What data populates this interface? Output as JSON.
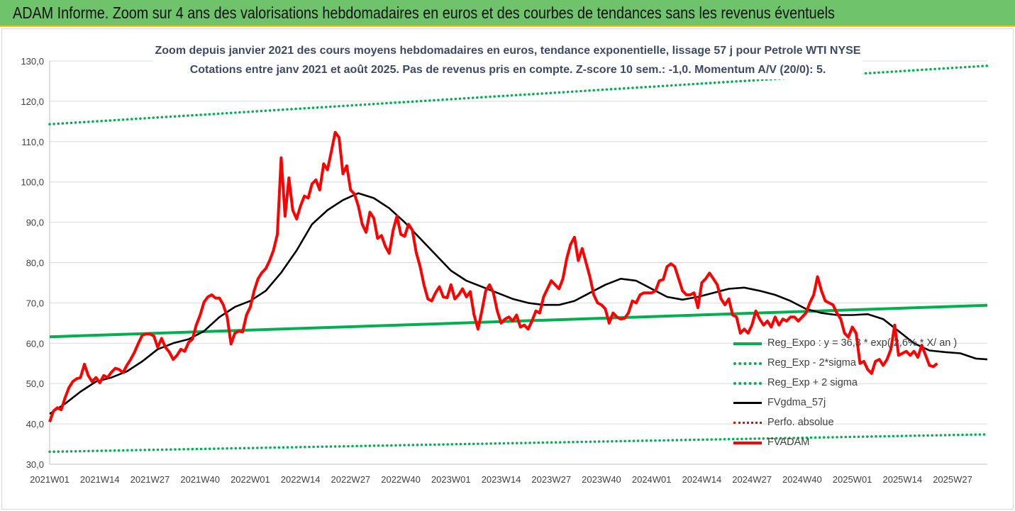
{
  "banner": {
    "title": "ADAM Informe. Zoom sur 4 ans des valorisations hebdomadaires en euros et des courbes de tendances sans les revenus éventuels"
  },
  "colors": {
    "banner_bg": "#6fc36a",
    "banner_border": "#f4c20d",
    "subtitle_text": "#3d4a66",
    "series_fvadam": "#ff0000",
    "series_fvgdma": "#000000",
    "series_regexpo": "#00b050",
    "series_perfo": "#ff0000",
    "gridline": "#d9d9d9"
  },
  "chart_data": {
    "type": "line",
    "title_line1": "Zoom depuis janvier 2021 des cours moyens hebdomadaires en euros, tendance exponentielle, lissage 57 j pour Petrole WTI NYSE",
    "title_line2": "Cotations entre janv 2021 et août 2025.  Pas de revenus pris en compte.  Z-score 10 sem.: -1,0. Momentum A/V (20/0): 5.",
    "ylim": [
      30,
      130
    ],
    "grid": "horizontal",
    "y_ticks": [
      "30,0",
      "40,0",
      "50,0",
      "60,0",
      "70,0",
      "80,0",
      "90,0",
      "100,0",
      "110,0",
      "120,0",
      "130,0"
    ],
    "x_ticks": [
      "2021W01",
      "2021W14",
      "2021W27",
      "2021W40",
      "2022W01",
      "2022W14",
      "2022W27",
      "2022W40",
      "2023W01",
      "2023W14",
      "2023W27",
      "2023W40",
      "2024W01",
      "2024W14",
      "2024W27",
      "2024W40",
      "2025W01",
      "2025W14",
      "2025W27"
    ],
    "x_range_weeks": [
      0,
      243
    ],
    "legend_position": "bottom-right",
    "series": [
      {
        "name": "Reg_Expo : y = 36,3 * exp( 2,6% *  X/ an )",
        "key": "reg",
        "style": "solid",
        "points": [
          [
            0,
            61.6
          ],
          [
            243,
            69.4
          ]
        ]
      },
      {
        "name": "Reg_Exp - 2*sigma",
        "key": "low",
        "style": "dotted",
        "points": [
          [
            0,
            33.1
          ],
          [
            243,
            37.4
          ]
        ]
      },
      {
        "name": "Reg_Exp + 2 sigma",
        "key": "high",
        "style": "dotted",
        "points": [
          [
            0,
            114.3
          ],
          [
            243,
            128.8
          ]
        ]
      },
      {
        "name": "FVgdma_57j",
        "key": "gdma",
        "style": "solid",
        "points": [
          [
            0,
            42.5
          ],
          [
            4,
            45
          ],
          [
            8,
            48
          ],
          [
            12,
            50.5
          ],
          [
            16,
            51.5
          ],
          [
            20,
            53
          ],
          [
            24,
            55.5
          ],
          [
            28,
            58.5
          ],
          [
            32,
            60
          ],
          [
            36,
            61
          ],
          [
            40,
            63
          ],
          [
            44,
            66.5
          ],
          [
            48,
            69
          ],
          [
            52,
            70.5
          ],
          [
            56,
            73
          ],
          [
            60,
            77.5
          ],
          [
            64,
            83
          ],
          [
            68,
            89.5
          ],
          [
            72,
            93
          ],
          [
            76,
            95.5
          ],
          [
            80,
            97.2
          ],
          [
            84,
            96
          ],
          [
            88,
            93.5
          ],
          [
            92,
            90
          ],
          [
            96,
            86
          ],
          [
            100,
            82
          ],
          [
            104,
            78
          ],
          [
            108,
            75.5
          ],
          [
            112,
            74
          ],
          [
            116,
            72.5
          ],
          [
            120,
            71
          ],
          [
            124,
            70
          ],
          [
            128,
            69.5
          ],
          [
            132,
            69.5
          ],
          [
            136,
            70.5
          ],
          [
            140,
            72.5
          ],
          [
            144,
            74.5
          ],
          [
            148,
            76
          ],
          [
            152,
            75.5
          ],
          [
            156,
            73.5
          ],
          [
            160,
            71.5
          ],
          [
            164,
            70.8
          ],
          [
            168,
            71.5
          ],
          [
            172,
            72.5
          ],
          [
            176,
            73.5
          ],
          [
            180,
            73.8
          ],
          [
            184,
            73
          ],
          [
            188,
            72
          ],
          [
            192,
            70.5
          ],
          [
            196,
            68.5
          ],
          [
            200,
            67.5
          ],
          [
            204,
            67
          ],
          [
            208,
            67
          ],
          [
            212,
            67.2
          ],
          [
            216,
            66
          ],
          [
            220,
            63
          ],
          [
            224,
            60
          ],
          [
            228,
            58.2
          ],
          [
            232,
            57.8
          ],
          [
            236,
            57.5
          ],
          [
            240,
            56.2
          ],
          [
            243,
            56
          ]
        ]
      },
      {
        "name": "Perfo. absolue",
        "key": "perfo",
        "style": "dotted",
        "points": []
      },
      {
        "name": "FVADAM",
        "key": "adam",
        "style": "solid",
        "points": [
          [
            0,
            40.5
          ],
          [
            1,
            43.2
          ],
          [
            2,
            44
          ],
          [
            3,
            43.5
          ],
          [
            4,
            46.5
          ],
          [
            5,
            49
          ],
          [
            6,
            50.5
          ],
          [
            7,
            51.2
          ],
          [
            8,
            51.5
          ],
          [
            9,
            54.8
          ],
          [
            10,
            52
          ],
          [
            11,
            50.5
          ],
          [
            12,
            51.5
          ],
          [
            13,
            50.2
          ],
          [
            14,
            52
          ],
          [
            15,
            51.5
          ],
          [
            16,
            52.8
          ],
          [
            17,
            53.8
          ],
          [
            18,
            53.5
          ],
          [
            19,
            52.7
          ],
          [
            20,
            54.5
          ],
          [
            21,
            56
          ],
          [
            22,
            57.8
          ],
          [
            23,
            60
          ],
          [
            24,
            62
          ],
          [
            25,
            62.3
          ],
          [
            26,
            62.3
          ],
          [
            27,
            61.8
          ],
          [
            28,
            59
          ],
          [
            29,
            61.2
          ],
          [
            30,
            59
          ],
          [
            31,
            57.8
          ],
          [
            32,
            56
          ],
          [
            33,
            57
          ],
          [
            34,
            58.5
          ],
          [
            35,
            58
          ],
          [
            36,
            60.2
          ],
          [
            37,
            61
          ],
          [
            38,
            64.5
          ],
          [
            39,
            67
          ],
          [
            40,
            70.2
          ],
          [
            41,
            71.5
          ],
          [
            42,
            72
          ],
          [
            43,
            71.2
          ],
          [
            44,
            71.2
          ],
          [
            45,
            69.5
          ],
          [
            46,
            66.5
          ],
          [
            47,
            59.8
          ],
          [
            48,
            62.5
          ],
          [
            49,
            63
          ],
          [
            50,
            62.8
          ],
          [
            51,
            67
          ],
          [
            52,
            69
          ],
          [
            53,
            73
          ],
          [
            54,
            76
          ],
          [
            55,
            77.5
          ],
          [
            56,
            78.5
          ],
          [
            57,
            80.5
          ],
          [
            58,
            83
          ],
          [
            59,
            87
          ],
          [
            60,
            106
          ],
          [
            61,
            91.5
          ],
          [
            62,
            101
          ],
          [
            63,
            93
          ],
          [
            64,
            90.8
          ],
          [
            65,
            94
          ],
          [
            66,
            96.5
          ],
          [
            67,
            96
          ],
          [
            68,
            99.5
          ],
          [
            69,
            100.5
          ],
          [
            70,
            98
          ],
          [
            71,
            104.5
          ],
          [
            72,
            103
          ],
          [
            73,
            107.5
          ],
          [
            74,
            112.3
          ],
          [
            75,
            111
          ],
          [
            76,
            102
          ],
          [
            77,
            104
          ],
          [
            78,
            98
          ],
          [
            79,
            97
          ],
          [
            80,
            94
          ],
          [
            81,
            89.5
          ],
          [
            82,
            87.5
          ],
          [
            83,
            92.5
          ],
          [
            84,
            91
          ],
          [
            85,
            86
          ],
          [
            86,
            86.7
          ],
          [
            87,
            84
          ],
          [
            88,
            82.3
          ],
          [
            89,
            88
          ],
          [
            90,
            91.5
          ],
          [
            91,
            87
          ],
          [
            92,
            86.5
          ],
          [
            93,
            89.5
          ],
          [
            94,
            88
          ],
          [
            95,
            82.5
          ],
          [
            96,
            79
          ],
          [
            97,
            74.5
          ],
          [
            98,
            71
          ],
          [
            99,
            70.5
          ],
          [
            100,
            72.5
          ],
          [
            101,
            74
          ],
          [
            102,
            71.5
          ],
          [
            103,
            71.3
          ],
          [
            104,
            74.5
          ],
          [
            105,
            71
          ],
          [
            106,
            72
          ],
          [
            107,
            73.5
          ],
          [
            108,
            71.5
          ],
          [
            109,
            72.8
          ],
          [
            110,
            67
          ],
          [
            111,
            63.5
          ],
          [
            112,
            68
          ],
          [
            113,
            73
          ],
          [
            114,
            74.5
          ],
          [
            115,
            72.5
          ],
          [
            116,
            68
          ],
          [
            117,
            65
          ],
          [
            118,
            66
          ],
          [
            119,
            66.5
          ],
          [
            120,
            65.5
          ],
          [
            121,
            67
          ],
          [
            122,
            64
          ],
          [
            123,
            64.5
          ],
          [
            124,
            63.5
          ],
          [
            125,
            65.5
          ],
          [
            126,
            68
          ],
          [
            127,
            67.5
          ],
          [
            128,
            71.5
          ],
          [
            129,
            73.5
          ],
          [
            130,
            75.5
          ],
          [
            131,
            74.5
          ],
          [
            132,
            73.5
          ],
          [
            133,
            76
          ],
          [
            134,
            81
          ],
          [
            135,
            84.5
          ],
          [
            136,
            86.3
          ],
          [
            137,
            80.5
          ],
          [
            138,
            83.5
          ],
          [
            139,
            80
          ],
          [
            140,
            76.5
          ],
          [
            141,
            72
          ],
          [
            142,
            70
          ],
          [
            143,
            69.5
          ],
          [
            144,
            68.5
          ],
          [
            145,
            65
          ],
          [
            146,
            67.5
          ],
          [
            147,
            66.5
          ],
          [
            148,
            66
          ],
          [
            149,
            66.2
          ],
          [
            150,
            67.5
          ],
          [
            151,
            70.5
          ],
          [
            152,
            70
          ],
          [
            153,
            72
          ],
          [
            154,
            72.5
          ],
          [
            155,
            72.5
          ],
          [
            156,
            72.5
          ],
          [
            157,
            73
          ],
          [
            158,
            75.5
          ],
          [
            159,
            75.8
          ],
          [
            160,
            79
          ],
          [
            161,
            79.7
          ],
          [
            162,
            79
          ],
          [
            163,
            76
          ],
          [
            164,
            73
          ],
          [
            165,
            72
          ],
          [
            166,
            72
          ],
          [
            167,
            72.5
          ],
          [
            168,
            68.8
          ],
          [
            169,
            75
          ],
          [
            170,
            76
          ],
          [
            171,
            77.4
          ],
          [
            172,
            76
          ],
          [
            173,
            74.5
          ],
          [
            174,
            71
          ],
          [
            175,
            69.5
          ],
          [
            176,
            71
          ],
          [
            177,
            67
          ],
          [
            178,
            66.5
          ],
          [
            179,
            62.5
          ],
          [
            180,
            63.5
          ],
          [
            181,
            62.5
          ],
          [
            182,
            64.5
          ],
          [
            183,
            68
          ],
          [
            184,
            66
          ],
          [
            185,
            64.5
          ],
          [
            186,
            65.5
          ],
          [
            187,
            64
          ],
          [
            188,
            66.5
          ],
          [
            189,
            64.5
          ],
          [
            190,
            66
          ],
          [
            191,
            65.5
          ],
          [
            192,
            66.5
          ],
          [
            193,
            66.5
          ],
          [
            194,
            65.5
          ],
          [
            195,
            66.5
          ],
          [
            196,
            67.5
          ],
          [
            197,
            70
          ],
          [
            198,
            72
          ],
          [
            199,
            76.5
          ],
          [
            200,
            73
          ],
          [
            201,
            70.5
          ],
          [
            202,
            70
          ],
          [
            203,
            69.5
          ],
          [
            204,
            67.5
          ],
          [
            205,
            66
          ],
          [
            206,
            62.5
          ],
          [
            207,
            61.5
          ],
          [
            208,
            64
          ],
          [
            209,
            62.5
          ],
          [
            210,
            55
          ],
          [
            211,
            55.5
          ],
          [
            212,
            53.5
          ],
          [
            213,
            52.5
          ],
          [
            214,
            55.5
          ],
          [
            215,
            56
          ],
          [
            216,
            54.5
          ],
          [
            217,
            56
          ],
          [
            218,
            58.5
          ],
          [
            219,
            64.5
          ],
          [
            220,
            57
          ],
          [
            221,
            57.5
          ],
          [
            222,
            58
          ],
          [
            223,
            57
          ],
          [
            224,
            58
          ],
          [
            225,
            56.5
          ],
          [
            226,
            59.5
          ],
          [
            227,
            57
          ],
          [
            228,
            54.5
          ],
          [
            229,
            54.2
          ],
          [
            230,
            55
          ]
        ]
      }
    ]
  }
}
